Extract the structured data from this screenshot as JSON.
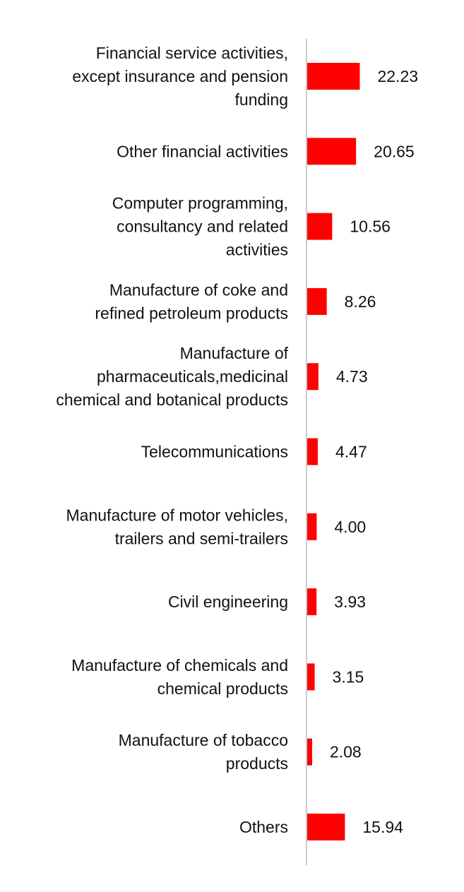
{
  "chart_data": {
    "type": "bar",
    "orientation": "horizontal",
    "title": "",
    "xlabel": "",
    "ylabel": "",
    "grid": false,
    "legend": "none",
    "bar_color": "#ff0000",
    "axis_color": "#cccccc",
    "xlim": [
      0,
      25
    ],
    "categories": [
      [
        "Financial service activities,",
        "except insurance and pension",
        "funding"
      ],
      [
        "Other financial activities"
      ],
      [
        "Computer programming,",
        "consultancy and related",
        "activities"
      ],
      [
        "Manufacture of coke and",
        "refined petroleum products"
      ],
      [
        "Manufacture of",
        "pharmaceuticals,medicinal",
        "chemical and botanical products"
      ],
      [
        "Telecommunications"
      ],
      [
        "Manufacture of motor vehicles,",
        "trailers and semi-trailers"
      ],
      [
        "Civil engineering"
      ],
      [
        "Manufacture of chemicals and",
        "chemical products"
      ],
      [
        "Manufacture of tobacco",
        "products"
      ],
      [
        "Others"
      ]
    ],
    "values": [
      22.23,
      20.65,
      10.56,
      8.26,
      4.73,
      4.47,
      4.0,
      3.93,
      3.15,
      2.08,
      15.94
    ],
    "value_labels": [
      "22.23",
      "20.65",
      "10.56",
      "8.26",
      "4.73",
      "4.47",
      "4.00",
      "3.93",
      "3.15",
      "2.08",
      "15.94"
    ]
  }
}
